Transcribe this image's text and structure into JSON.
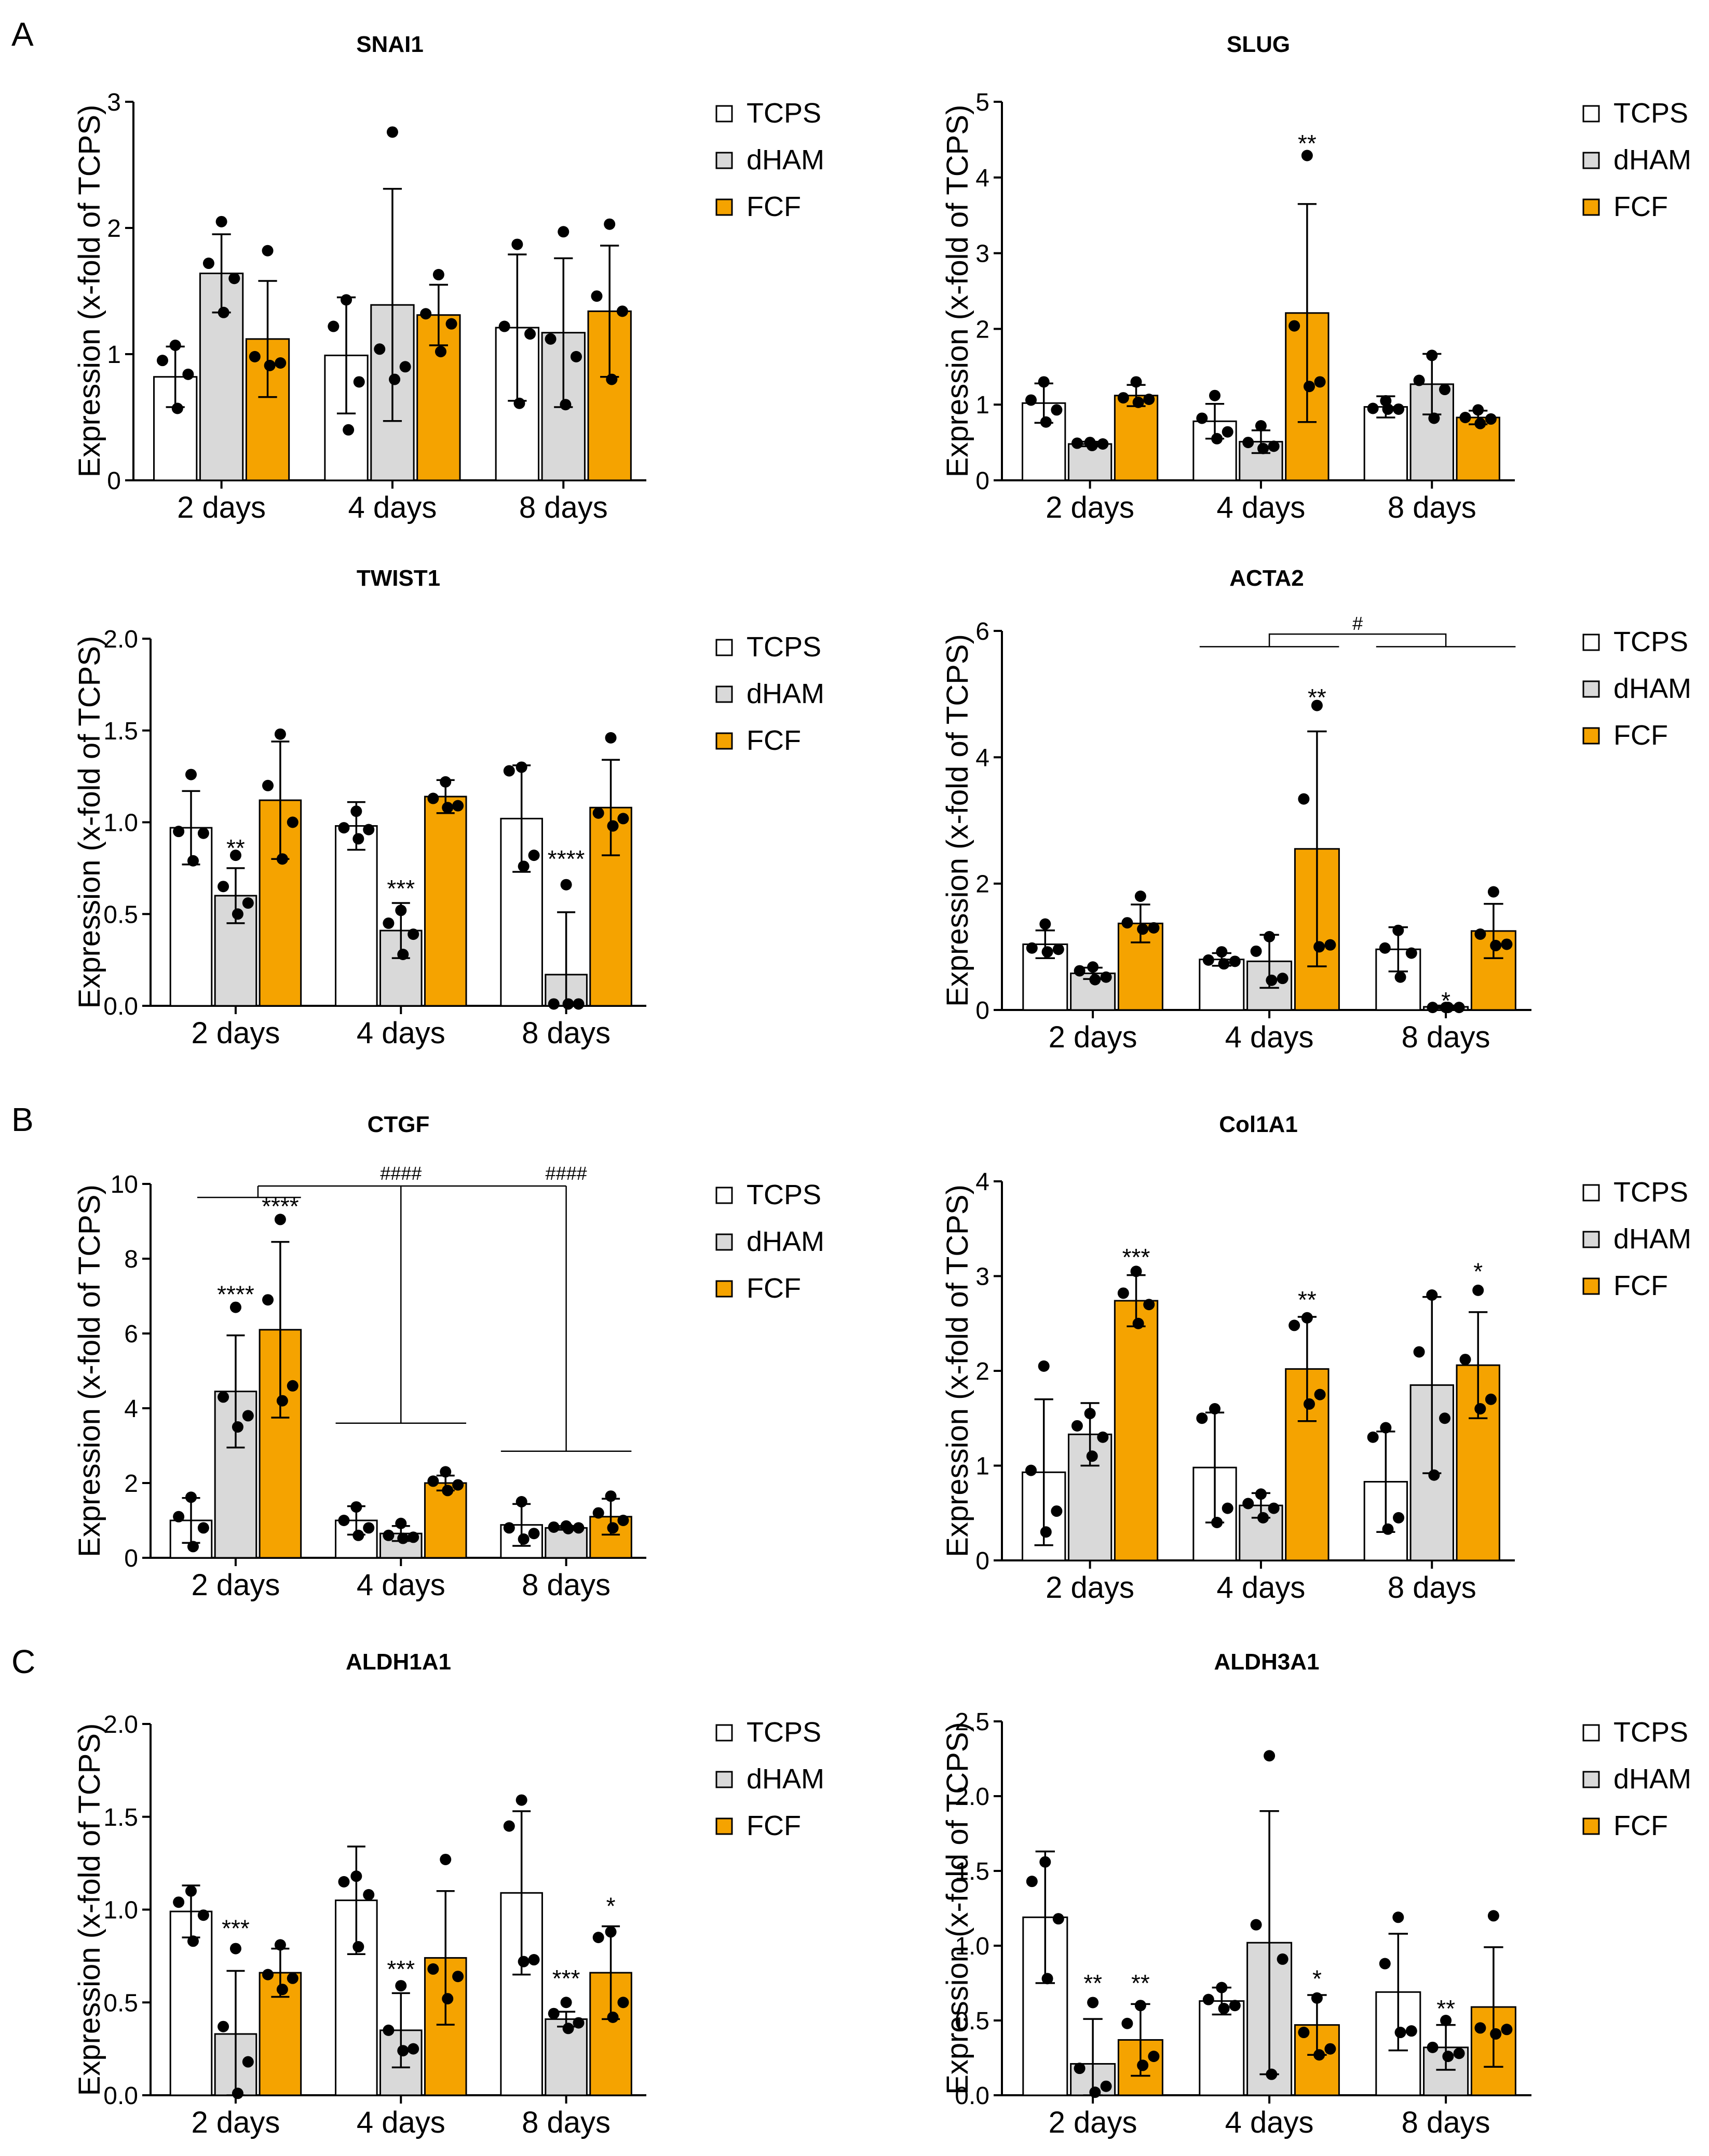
{
  "panel_labels": [
    "A",
    "B",
    "C"
  ],
  "colors": {
    "TCPS": "#ffffff",
    "dHAM": "#d9d9d9",
    "FCF": "#f5a300"
  },
  "legend": [
    "TCPS",
    "dHAM",
    "FCF"
  ],
  "chart_data": [
    {
      "type": "bar",
      "title": "SNAI1",
      "ylabel": "Expression (x-fold of TCPS)",
      "categories": [
        "2 days",
        "4 days",
        "8 days"
      ],
      "ylim": [
        0,
        3
      ],
      "yticks": [
        "0",
        "1",
        "2",
        "3"
      ],
      "series": [
        {
          "name": "TCPS",
          "values": [
            0.82,
            0.99,
            1.21
          ],
          "errors": [
            0.24,
            0.46,
            0.58
          ],
          "points": [
            [
              1.07,
              0.95,
              0.84,
              0.57
            ],
            [
              1.43,
              1.22,
              0.78,
              0.4
            ],
            [
              1.87,
              1.22,
              1.16,
              0.61
            ]
          ]
        },
        {
          "name": "dHAM",
          "values": [
            1.64,
            1.39,
            1.17
          ],
          "errors": [
            0.31,
            0.92,
            0.59
          ],
          "points": [
            [
              2.05,
              1.72,
              1.6,
              1.33
            ],
            [
              2.76,
              1.04,
              0.9,
              0.8
            ],
            [
              1.97,
              1.12,
              0.98,
              0.6
            ]
          ]
        },
        {
          "name": "FCF",
          "values": [
            1.12,
            1.31,
            1.34
          ],
          "errors": [
            0.46,
            0.24,
            0.52
          ],
          "points": [
            [
              1.82,
              0.98,
              0.93,
              0.91
            ],
            [
              1.63,
              1.32,
              1.24,
              1.02
            ],
            [
              2.03,
              1.46,
              1.34,
              0.8
            ]
          ]
        }
      ],
      "annotations": []
    },
    {
      "type": "bar",
      "title": "SLUG",
      "ylabel": "Expression (x-fold of TCPS)",
      "categories": [
        "2 days",
        "4 days",
        "8 days"
      ],
      "ylim": [
        0,
        5
      ],
      "yticks": [
        "0",
        "1",
        "2",
        "3",
        "4",
        "5"
      ],
      "series": [
        {
          "name": "TCPS",
          "values": [
            1.02,
            0.78,
            0.97
          ],
          "errors": [
            0.26,
            0.23,
            0.14
          ],
          "points": [
            [
              1.3,
              1.06,
              0.93,
              0.77
            ],
            [
              1.12,
              0.82,
              0.64,
              0.55
            ],
            [
              1.05,
              0.95,
              0.94,
              0.94
            ]
          ]
        },
        {
          "name": "dHAM",
          "values": [
            0.48,
            0.51,
            1.27
          ],
          "errors": [
            0.03,
            0.15,
            0.4
          ],
          "points": [
            [
              0.5,
              0.49,
              0.48,
              0.46
            ],
            [
              0.72,
              0.5,
              0.45,
              0.42
            ],
            [
              1.65,
              1.32,
              1.2,
              0.82
            ]
          ]
        },
        {
          "name": "FCF",
          "values": [
            1.12,
            2.21,
            0.83
          ],
          "errors": [
            0.14,
            1.44,
            0.09
          ],
          "points": [
            [
              1.3,
              1.09,
              1.07,
              1.03
            ],
            [
              4.29,
              2.04,
              1.3,
              1.24
            ],
            [
              0.93,
              0.83,
              0.81,
              0.75
            ]
          ]
        }
      ],
      "annotations": [
        {
          "label": "**",
          "group": 1,
          "series": 2,
          "y": 4.45
        }
      ]
    },
    {
      "type": "bar",
      "title": "TWIST1",
      "ylabel": "Expression (x-fold of TCPS)",
      "categories": [
        "2 days",
        "4 days",
        "8 days"
      ],
      "ylim": [
        0,
        2
      ],
      "yticks": [
        "0.0",
        "0.5",
        "1.0",
        "1.5",
        "2.0"
      ],
      "series": [
        {
          "name": "TCPS",
          "values": [
            0.97,
            0.98,
            1.02
          ],
          "errors": [
            0.2,
            0.13,
            0.29
          ],
          "points": [
            [
              1.26,
              0.95,
              0.94,
              0.79
            ],
            [
              1.06,
              0.97,
              0.96,
              0.91
            ],
            [
              1.3,
              1.28,
              0.82,
              0.76
            ]
          ]
        },
        {
          "name": "dHAM",
          "values": [
            0.6,
            0.41,
            0.17
          ],
          "errors": [
            0.15,
            0.15,
            0.34
          ],
          "points": [
            [
              0.82,
              0.65,
              0.56,
              0.5
            ],
            [
              0.52,
              0.45,
              0.39,
              0.28
            ],
            [
              0.66,
              0.01,
              0.01,
              0.01
            ]
          ]
        },
        {
          "name": "FCF",
          "values": [
            1.12,
            1.14,
            1.08
          ],
          "errors": [
            0.32,
            0.09,
            0.26
          ],
          "points": [
            [
              1.48,
              1.2,
              1.0,
              0.8
            ],
            [
              1.22,
              1.13,
              1.09,
              1.08
            ],
            [
              1.46,
              1.05,
              1.02,
              0.98
            ]
          ]
        }
      ],
      "annotations": [
        {
          "label": "**",
          "group": 0,
          "series": 1,
          "y": 0.86
        },
        {
          "label": "***",
          "group": 1,
          "series": 1,
          "y": 0.64
        },
        {
          "label": "****",
          "group": 2,
          "series": 1,
          "y": 0.8
        }
      ]
    },
    {
      "type": "bar",
      "title": "ACTA2",
      "ylabel": "Expression (x-fold of TCPS)",
      "categories": [
        "2 days",
        "4 days",
        "8 days"
      ],
      "ylim": [
        0,
        6
      ],
      "yticks": [
        "0",
        "2",
        "4",
        "6"
      ],
      "series": [
        {
          "name": "TCPS",
          "values": [
            1.04,
            0.8,
            0.96
          ],
          "errors": [
            0.22,
            0.1,
            0.35
          ],
          "points": [
            [
              1.36,
              0.98,
              0.96,
              0.92
            ],
            [
              0.92,
              0.79,
              0.77,
              0.73
            ],
            [
              1.26,
              0.98,
              0.9,
              0.52
            ]
          ]
        },
        {
          "name": "dHAM",
          "values": [
            0.58,
            0.77,
            0.05
          ],
          "errors": [
            0.09,
            0.42,
            0.02
          ],
          "points": [
            [
              0.68,
              0.62,
              0.52,
              0.48
            ],
            [
              1.16,
              0.93,
              0.5,
              0.47
            ],
            [
              0.04,
              0.04,
              0.04,
              0.04
            ]
          ]
        },
        {
          "name": "FCF",
          "values": [
            1.37,
            2.55,
            1.25
          ],
          "errors": [
            0.3,
            1.86,
            0.43
          ],
          "points": [
            [
              1.8,
              1.38,
              1.3,
              1.28
            ],
            [
              4.82,
              3.34,
              1.03,
              1.0
            ],
            [
              1.87,
              1.2,
              1.04,
              1.02
            ]
          ]
        }
      ],
      "annotations": [
        {
          "label": "**",
          "group": 1,
          "series": 2,
          "y": 4.95
        },
        {
          "label": "*",
          "group": 2,
          "series": 1,
          "y": 0.15
        }
      ],
      "bracket": {
        "label": "#",
        "from_group": 1,
        "to_group": 2,
        "y": 5.75,
        "top": 5.95
      }
    },
    {
      "type": "bar",
      "title": "CTGF",
      "ylabel": "Expression (x-fold of TCPS)",
      "categories": [
        "2 days",
        "4 days",
        "8 days"
      ],
      "ylim": [
        0,
        10
      ],
      "yticks": [
        "0",
        "2",
        "4",
        "6",
        "8",
        "10"
      ],
      "series": [
        {
          "name": "TCPS",
          "values": [
            1.0,
            1.0,
            0.88
          ],
          "errors": [
            0.6,
            0.38,
            0.56
          ],
          "points": [
            [
              1.62,
              1.1,
              0.8,
              0.3
            ],
            [
              1.36,
              1.0,
              0.8,
              0.6
            ],
            [
              1.5,
              0.8,
              0.65,
              0.5
            ]
          ]
        },
        {
          "name": "dHAM",
          "values": [
            4.45,
            0.65,
            0.8
          ],
          "errors": [
            1.5,
            0.2,
            0.05
          ],
          "points": [
            [
              6.7,
              4.3,
              3.8,
              3.5
            ],
            [
              0.92,
              0.6,
              0.55,
              0.52
            ],
            [
              0.85,
              0.82,
              0.8,
              0.78
            ]
          ]
        },
        {
          "name": "FCF",
          "values": [
            6.1,
            2.0,
            1.1
          ],
          "errors": [
            2.35,
            0.2,
            0.48
          ],
          "points": [
            [
              9.05,
              6.9,
              4.6,
              4.2
            ],
            [
              2.3,
              2.05,
              1.95,
              1.8
            ],
            [
              1.65,
              1.2,
              1.0,
              0.8
            ]
          ]
        }
      ],
      "annotations": [
        {
          "label": "****",
          "group": 0,
          "series": 1,
          "y": 7.05
        },
        {
          "label": "****",
          "group": 0,
          "series": 2,
          "y": 9.4
        }
      ],
      "ctgf_brackets": {
        "labels": [
          "####",
          "####"
        ],
        "top": 10.0
      }
    },
    {
      "type": "bar",
      "title": "Col1A1",
      "ylabel": "Expression (x-fold of TCPS)",
      "categories": [
        "2 days",
        "4 days",
        "8 days"
      ],
      "ylim": [
        0,
        4
      ],
      "yticks": [
        "0",
        "1",
        "2",
        "3",
        "4"
      ],
      "series": [
        {
          "name": "TCPS",
          "values": [
            0.93,
            0.98,
            0.83
          ],
          "errors": [
            0.77,
            0.58,
            0.53
          ],
          "points": [
            [
              2.05,
              0.95,
              0.52,
              0.3
            ],
            [
              1.6,
              1.5,
              0.55,
              0.4
            ],
            [
              1.4,
              1.3,
              0.45,
              0.33
            ]
          ]
        },
        {
          "name": "dHAM",
          "values": [
            1.33,
            0.58,
            1.85
          ],
          "errors": [
            0.33,
            0.13,
            0.93
          ],
          "points": [
            [
              1.55,
              1.42,
              1.3,
              1.1
            ],
            [
              0.7,
              0.6,
              0.55,
              0.45
            ],
            [
              2.8,
              2.2,
              1.5,
              0.9
            ]
          ]
        },
        {
          "name": "FCF",
          "values": [
            2.74,
            2.02,
            2.06
          ],
          "errors": [
            0.27,
            0.55,
            0.56
          ],
          "points": [
            [
              3.05,
              2.82,
              2.7,
              2.5
            ],
            [
              2.56,
              2.48,
              1.75,
              1.65
            ],
            [
              2.85,
              2.12,
              1.7,
              1.6
            ]
          ]
        }
      ],
      "annotations": [
        {
          "label": "***",
          "group": 0,
          "series": 2,
          "y": 3.2
        },
        {
          "label": "**",
          "group": 1,
          "series": 2,
          "y": 2.75
        },
        {
          "label": "*",
          "group": 2,
          "series": 2,
          "y": 3.05
        }
      ]
    },
    {
      "type": "bar",
      "title": "ALDH1A1",
      "ylabel": "Expression (x-fold of TCPS)",
      "categories": [
        "2 days",
        "4 days",
        "8 days"
      ],
      "ylim": [
        0,
        2
      ],
      "yticks": [
        "0.0",
        "0.5",
        "1.0",
        "1.5",
        "2.0"
      ],
      "series": [
        {
          "name": "TCPS",
          "values": [
            0.99,
            1.05,
            1.09
          ],
          "errors": [
            0.14,
            0.29,
            0.44
          ],
          "points": [
            [
              1.1,
              1.04,
              0.97,
              0.83
            ],
            [
              1.18,
              1.15,
              1.08,
              0.8
            ],
            [
              1.59,
              1.45,
              0.73,
              0.72
            ]
          ]
        },
        {
          "name": "dHAM",
          "values": [
            0.33,
            0.35,
            0.41
          ],
          "errors": [
            0.34,
            0.2,
            0.04
          ],
          "points": [
            [
              0.79,
              0.37,
              0.18,
              0.01
            ],
            [
              0.59,
              0.35,
              0.25,
              0.24
            ],
            [
              0.5,
              0.44,
              0.39,
              0.36
            ]
          ]
        },
        {
          "name": "FCF",
          "values": [
            0.66,
            0.74,
            0.66
          ],
          "errors": [
            0.13,
            0.36,
            0.25
          ],
          "points": [
            [
              0.81,
              0.65,
              0.63,
              0.57
            ],
            [
              1.27,
              0.68,
              0.64,
              0.52
            ],
            [
              0.88,
              0.85,
              0.5,
              0.42
            ]
          ]
        }
      ],
      "annotations": [
        {
          "label": "***",
          "group": 0,
          "series": 1,
          "y": 0.9
        },
        {
          "label": "***",
          "group": 1,
          "series": 1,
          "y": 0.68
        },
        {
          "label": "***",
          "group": 2,
          "series": 1,
          "y": 0.63
        },
        {
          "label": "*",
          "group": 2,
          "series": 2,
          "y": 1.02
        }
      ]
    },
    {
      "type": "bar",
      "title": "ALDH3A1",
      "ylabel": "Expression (x-fold of TCPS)",
      "categories": [
        "2 days",
        "4 days",
        "8 days"
      ],
      "ylim": [
        0,
        2.5
      ],
      "yticks": [
        "0.0",
        "0.5",
        "1.0",
        "1.5",
        "2.0",
        "2.5"
      ],
      "series": [
        {
          "name": "TCPS",
          "values": [
            1.19,
            0.63,
            0.69
          ],
          "errors": [
            0.44,
            0.09,
            0.39
          ],
          "points": [
            [
              1.56,
              1.43,
              1.18,
              0.78
            ],
            [
              0.72,
              0.64,
              0.6,
              0.58
            ],
            [
              1.19,
              0.88,
              0.43,
              0.42
            ]
          ]
        },
        {
          "name": "dHAM",
          "values": [
            0.21,
            1.02,
            0.32
          ],
          "errors": [
            0.3,
            0.88,
            0.15
          ],
          "points": [
            [
              0.62,
              0.18,
              0.06,
              0.02
            ],
            [
              2.27,
              1.14,
              0.91,
              0.14
            ],
            [
              0.5,
              0.32,
              0.28,
              0.26
            ]
          ]
        },
        {
          "name": "FCF",
          "values": [
            0.37,
            0.47,
            0.59
          ],
          "errors": [
            0.24,
            0.2,
            0.4
          ],
          "points": [
            [
              0.6,
              0.48,
              0.26,
              0.2
            ],
            [
              0.65,
              0.42,
              0.31,
              0.27
            ],
            [
              1.2,
              0.45,
              0.44,
              0.41
            ]
          ]
        }
      ],
      "annotations": [
        {
          "label": "**",
          "group": 0,
          "series": 1,
          "y": 0.75
        },
        {
          "label": "**",
          "group": 0,
          "series": 2,
          "y": 0.75
        },
        {
          "label": "*",
          "group": 1,
          "series": 2,
          "y": 0.78
        },
        {
          "label": "**",
          "group": 2,
          "series": 1,
          "y": 0.58
        }
      ]
    }
  ]
}
